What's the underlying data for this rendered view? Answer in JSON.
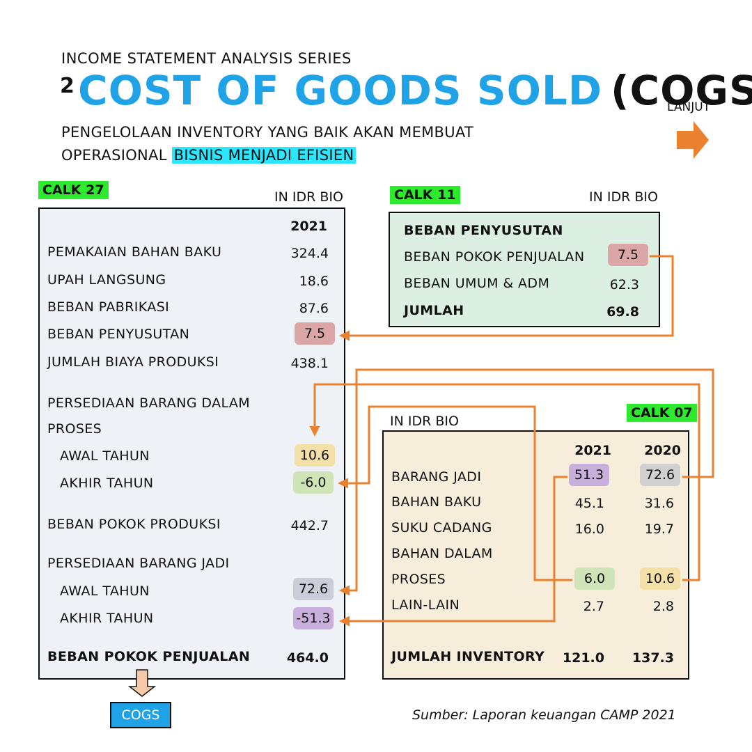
{
  "header": {
    "series": "INCOME STATEMENT ANALYSIS SERIES",
    "number": "2",
    "title": "COST OF GOODS SOLD",
    "title_paren": "(COGS)",
    "subtitle_line1": "PENGELOLAAN INVENTORY YANG  BAIK AKAN MEMBUAT",
    "subtitle_line2_prefix": "OPERASIONAL ",
    "subtitle_line2_highlight": "BISNIS MENJADI EFISIEN"
  },
  "nav": {
    "next_label": "LANJUT"
  },
  "calk27": {
    "tag": "CALK 27",
    "unit": "IN IDR BIO",
    "year": "2021",
    "rows": [
      {
        "label": "PEMAKAIAN BAHAN BAKU",
        "value": "324.4"
      },
      {
        "label": "UPAH LANGSUNG",
        "value": "18.6"
      },
      {
        "label": "BEBAN PABRIKASI",
        "value": "87.6"
      },
      {
        "label": "BEBAN PENYUSUTAN",
        "value": "7.5"
      },
      {
        "label": "JUMLAH BIAYA PRODUKSI",
        "value": "438.1"
      }
    ],
    "wip_title_1": "PERSEDIAAN BARANG DALAM",
    "wip_title_2": "PROSES",
    "wip_open_label": "AWAL TAHUN",
    "wip_open_value": "10.6",
    "wip_close_label": "AKHIR TAHUN",
    "wip_close_value": "-6.0",
    "cogm_label": "BEBAN POKOK PRODUKSI",
    "cogm_value": "442.7",
    "fg_title": "PERSEDIAAN BARANG JADI",
    "fg_open_label": "AWAL TAHUN",
    "fg_open_value": "72.6",
    "fg_close_label": "AKHIR TAHUN",
    "fg_close_value": "-51.3",
    "cogs_label": "BEBAN POKOK PENJUALAN",
    "cogs_value": "464.0"
  },
  "calk11": {
    "tag": "CALK 11",
    "unit": "IN IDR BIO",
    "heading": "BEBAN PENYUSUTAN",
    "rows": [
      {
        "label": "BEBAN POKOK PENJUALAN",
        "value": "7.5"
      },
      {
        "label": "BEBAN UMUM & ADM",
        "value": "62.3"
      }
    ],
    "total_label": "JUMLAH",
    "total_value": "69.8"
  },
  "calk07": {
    "tag": "CALK 07",
    "unit": "IN IDR BIO",
    "years": [
      "2021",
      "2020"
    ],
    "rows": [
      {
        "label": "BARANG JADI",
        "v2021": "51.3",
        "v2020": "72.6"
      },
      {
        "label": "BAHAN BAKU",
        "v2021": "45.1",
        "v2020": "31.6"
      },
      {
        "label": "SUKU CADANG",
        "v2021": "16.0",
        "v2020": "19.7"
      },
      {
        "label": "BAHAN DALAM",
        "v2021": "",
        "v2020": ""
      },
      {
        "label": "PROSES",
        "v2021": "6.0",
        "v2020": "10.6"
      },
      {
        "label": "LAIN-LAIN",
        "v2021": "2.7",
        "v2020": "2.8"
      }
    ],
    "total_label": "JUMLAH INVENTORY",
    "total_2021": "121.0",
    "total_2020": "137.3"
  },
  "footer": {
    "cogs_label": "COGS",
    "source": "Sumber: Laporan keuangan CAMP 2021"
  },
  "colors": {
    "accent_blue": "#1fa3e6",
    "arrow_orange": "#e9812f",
    "tag_green": "#2eea2e",
    "highlight_cyan": "#2be6ff"
  }
}
